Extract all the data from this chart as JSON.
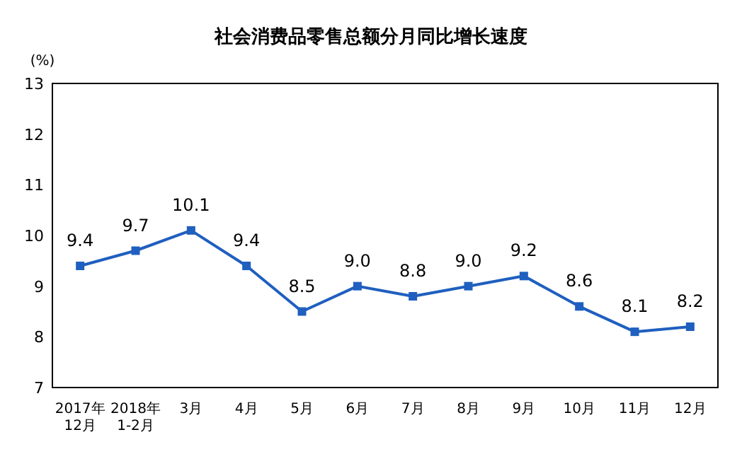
{
  "chart_data": {
    "type": "line",
    "title": "社会消费品零售总额分月同比增长速度",
    "ylabel": "(%)",
    "categories": [
      "2017年\n12月",
      "2018年\n1-2月",
      "3月",
      "4月",
      "5月",
      "6月",
      "7月",
      "8月",
      "9月",
      "10月",
      "11月",
      "12月"
    ],
    "series": [
      {
        "color": "#1f5fbf",
        "values": [
          9.4,
          9.7,
          10.1,
          9.4,
          8.5,
          9.0,
          8.8,
          9.0,
          9.2,
          8.6,
          8.1,
          8.2
        ],
        "value_labels": [
          "9.4",
          "9.7",
          "10.1",
          "9.4",
          "8.5",
          "9.0",
          "8.8",
          "9.0",
          "9.2",
          "8.6",
          "8.1",
          "8.2"
        ]
      }
    ],
    "ylim": [
      7,
      13
    ],
    "yticks": [
      7,
      8,
      9,
      10,
      11,
      12,
      13
    ],
    "marker": "square",
    "line_style": "solid",
    "grid": false
  }
}
